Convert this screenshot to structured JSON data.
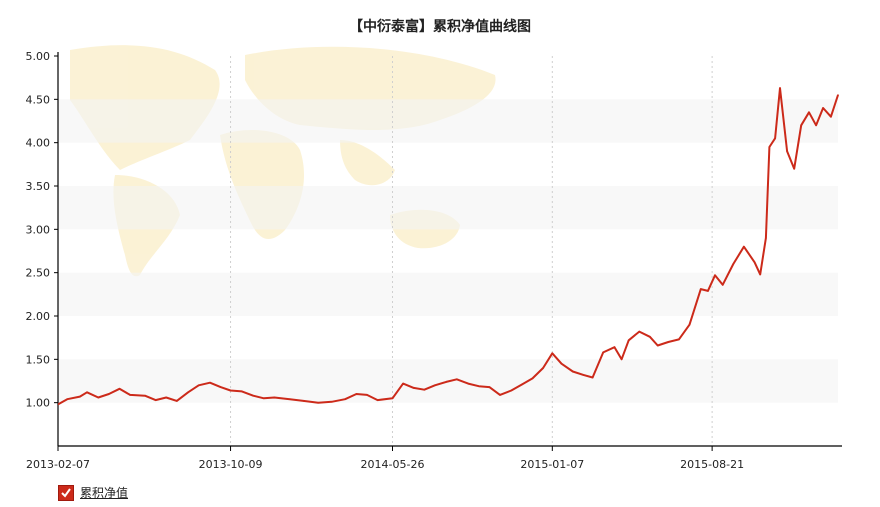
{
  "chart_data": {
    "type": "line",
    "title": "【中衍泰富】累积净值曲线图",
    "xlabel": "",
    "ylabel": "",
    "ylim": [
      0.5,
      5.0
    ],
    "yticks": [
      "1.00",
      "1.50",
      "2.00",
      "2.50",
      "3.00",
      "3.50",
      "4.00",
      "4.50",
      "5.00"
    ],
    "xticks": [
      "2013-02-07",
      "2013-10-09",
      "2014-05-26",
      "2015-01-07",
      "2015-08-21"
    ],
    "grid": true,
    "legend_position": "bottom-left",
    "series": [
      {
        "name": "累积净值",
        "color": "#cc2a1a",
        "points": [
          [
            "2013-02-07",
            0.98
          ],
          [
            "2013-02-20",
            1.04
          ],
          [
            "2013-03-10",
            1.07
          ],
          [
            "2013-03-20",
            1.12
          ],
          [
            "2013-04-05",
            1.06
          ],
          [
            "2013-04-20",
            1.1
          ],
          [
            "2013-05-05",
            1.16
          ],
          [
            "2013-05-20",
            1.09
          ],
          [
            "2013-06-10",
            1.08
          ],
          [
            "2013-06-25",
            1.03
          ],
          [
            "2013-07-10",
            1.06
          ],
          [
            "2013-07-25",
            1.02
          ],
          [
            "2013-08-10",
            1.12
          ],
          [
            "2013-08-25",
            1.2
          ],
          [
            "2013-09-10",
            1.23
          ],
          [
            "2013-09-25",
            1.18
          ],
          [
            "2013-10-09",
            1.14
          ],
          [
            "2013-10-25",
            1.13
          ],
          [
            "2013-11-10",
            1.08
          ],
          [
            "2013-11-25",
            1.05
          ],
          [
            "2013-12-10",
            1.06
          ],
          [
            "2014-01-01",
            1.04
          ],
          [
            "2014-01-20",
            1.02
          ],
          [
            "2014-02-10",
            1.0
          ],
          [
            "2014-03-01",
            1.01
          ],
          [
            "2014-03-20",
            1.04
          ],
          [
            "2014-04-05",
            1.1
          ],
          [
            "2014-04-20",
            1.09
          ],
          [
            "2014-05-05",
            1.03
          ],
          [
            "2014-05-26",
            1.05
          ],
          [
            "2014-06-10",
            1.22
          ],
          [
            "2014-06-25",
            1.17
          ],
          [
            "2014-07-10",
            1.15
          ],
          [
            "2014-07-25",
            1.2
          ],
          [
            "2014-08-10",
            1.24
          ],
          [
            "2014-08-25",
            1.27
          ],
          [
            "2014-09-10",
            1.22
          ],
          [
            "2014-09-25",
            1.19
          ],
          [
            "2014-10-10",
            1.18
          ],
          [
            "2014-10-25",
            1.09
          ],
          [
            "2014-11-10",
            1.14
          ],
          [
            "2014-11-25",
            1.21
          ],
          [
            "2014-12-10",
            1.28
          ],
          [
            "2014-12-25",
            1.4
          ],
          [
            "2015-01-07",
            1.57
          ],
          [
            "2015-01-20",
            1.45
          ],
          [
            "2015-02-05",
            1.36
          ],
          [
            "2015-02-20",
            1.32
          ],
          [
            "2015-03-05",
            1.29
          ],
          [
            "2015-03-20",
            1.58
          ],
          [
            "2015-04-05",
            1.64
          ],
          [
            "2015-04-15",
            1.5
          ],
          [
            "2015-04-25",
            1.72
          ],
          [
            "2015-05-10",
            1.82
          ],
          [
            "2015-05-25",
            1.76
          ],
          [
            "2015-06-05",
            1.66
          ],
          [
            "2015-06-20",
            1.7
          ],
          [
            "2015-07-05",
            1.73
          ],
          [
            "2015-07-20",
            1.9
          ],
          [
            "2015-08-05",
            2.31
          ],
          [
            "2015-08-15",
            2.29
          ],
          [
            "2015-08-25",
            2.47
          ],
          [
            "2015-09-05",
            2.36
          ],
          [
            "2015-09-20",
            2.6
          ],
          [
            "2015-10-05",
            2.8
          ],
          [
            "2015-10-20",
            2.62
          ],
          [
            "2015-10-28",
            2.48
          ],
          [
            "2015-11-05",
            2.9
          ],
          [
            "2015-11-10",
            3.95
          ],
          [
            "2015-11-18",
            4.05
          ],
          [
            "2015-11-25",
            4.63
          ],
          [
            "2015-12-05",
            3.9
          ],
          [
            "2015-12-15",
            3.7
          ],
          [
            "2015-12-25",
            4.2
          ],
          [
            "2016-01-05",
            4.35
          ],
          [
            "2016-01-15",
            4.2
          ],
          [
            "2016-01-25",
            4.4
          ],
          [
            "2016-02-05",
            4.3
          ],
          [
            "2016-02-15",
            4.55
          ]
        ]
      }
    ]
  },
  "legend": {
    "label": "累积净值",
    "checked": true
  }
}
